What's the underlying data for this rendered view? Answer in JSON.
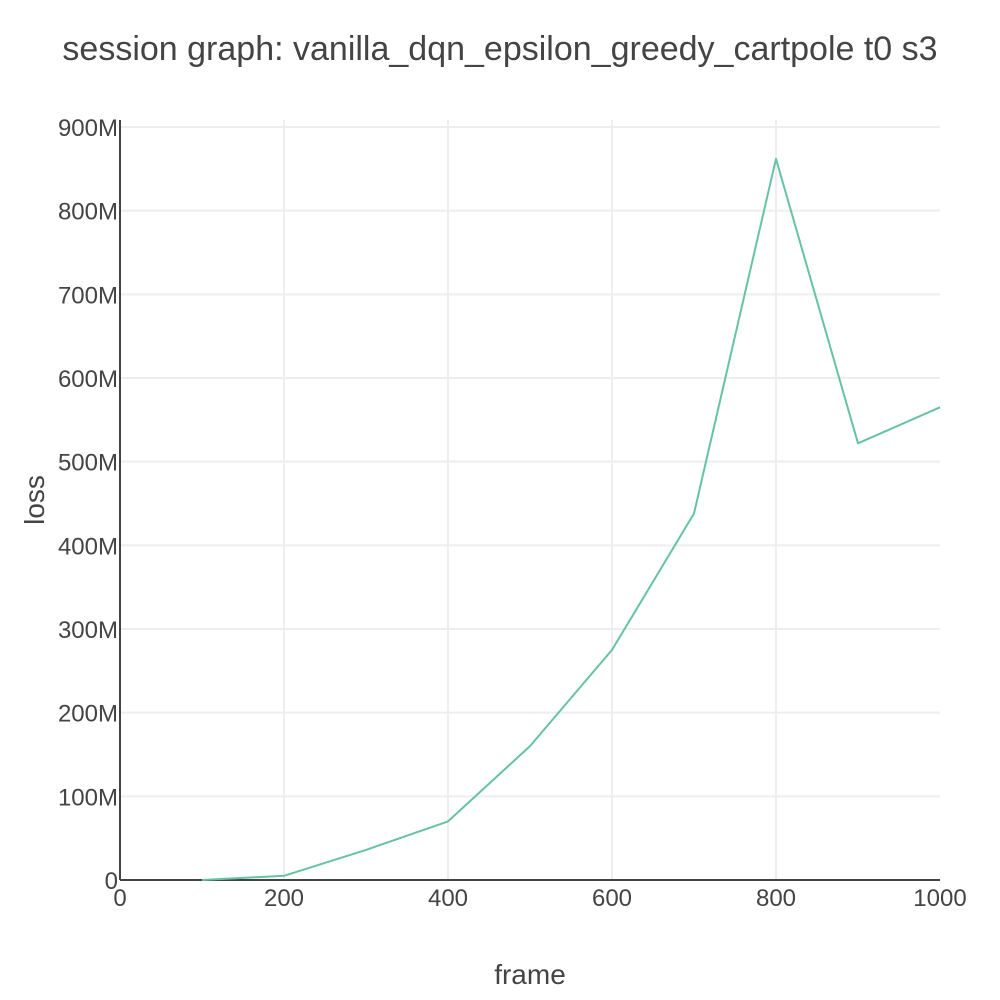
{
  "chart_data": {
    "type": "line",
    "title": "session graph: vanilla_dqn_epsilon_greedy_cartpole t0 s3",
    "xlabel": "frame",
    "ylabel": "loss",
    "xlim": [
      0,
      1000
    ],
    "ylim": [
      0,
      900000000
    ],
    "x_ticks": [
      0,
      200,
      400,
      600,
      800,
      1000
    ],
    "x_tick_labels": [
      "0",
      "200",
      "400",
      "600",
      "800",
      "1000"
    ],
    "y_ticks": [
      0,
      100000000,
      200000000,
      300000000,
      400000000,
      500000000,
      600000000,
      700000000,
      800000000,
      900000000
    ],
    "y_tick_labels": [
      "0",
      "100M",
      "200M",
      "300M",
      "400M",
      "500M",
      "600M",
      "700M",
      "800M",
      "900M"
    ],
    "grid": true,
    "series": [
      {
        "color": "#66c2a5",
        "x": [
          100,
          200,
          300,
          400,
          500,
          600,
          700,
          800,
          900,
          1000
        ],
        "y": [
          0,
          5000000,
          36000000,
          70000000,
          160000000,
          275000000,
          438000000,
          862000000,
          522000000,
          565000000
        ]
      }
    ]
  }
}
